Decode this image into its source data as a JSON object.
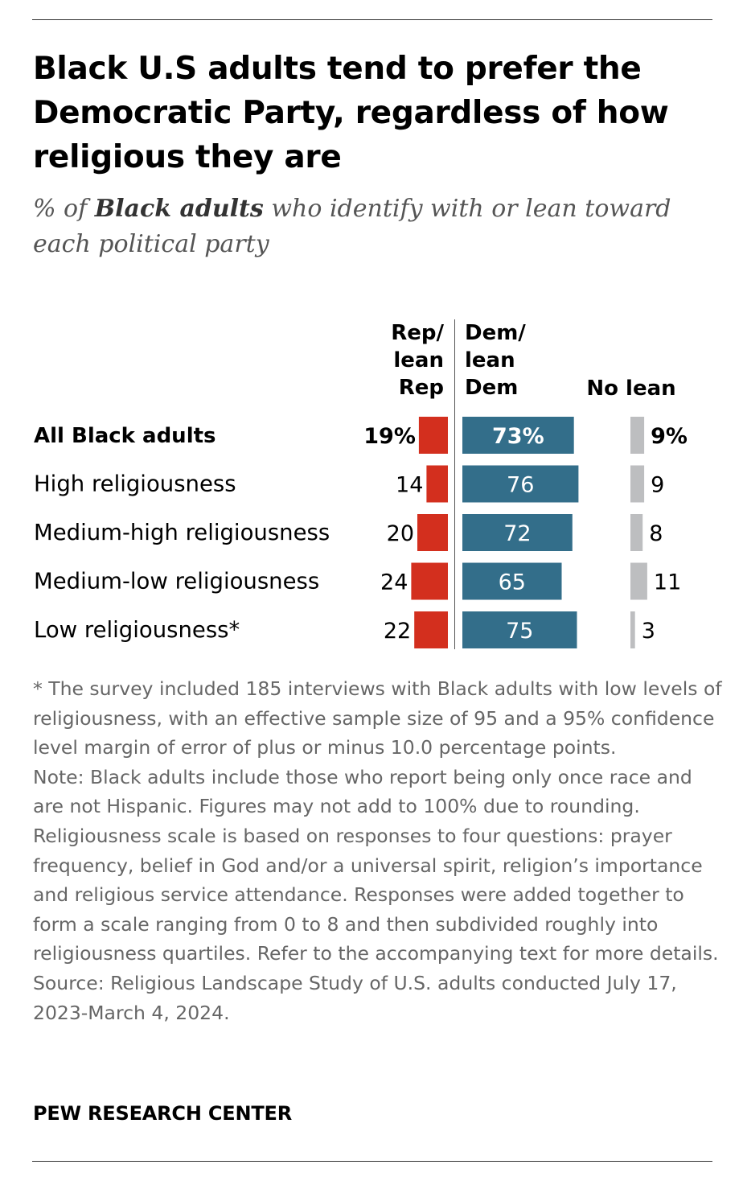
{
  "title": "Black U.S adults tend to prefer the Democratic Party, regardless of how religious they are",
  "subtitle": {
    "prefix": "% of ",
    "emphasis": "Black adults",
    "suffix": " who identify with or lean toward each political party"
  },
  "colors": {
    "rep": "#d32f1e",
    "dem": "#336e8a",
    "no_lean": "#bdbec0"
  },
  "chart_data": {
    "type": "bar",
    "categories": [
      "All Black adults",
      "High religiousness",
      "Medium-high religiousness",
      "Medium-low religiousness",
      "Low religiousness*"
    ],
    "series": [
      {
        "name": "Rep/ lean Rep",
        "values": [
          19,
          14,
          20,
          24,
          22
        ],
        "labels": [
          "19%",
          "14",
          "20",
          "24",
          "22"
        ]
      },
      {
        "name": "Dem/ lean Dem",
        "values": [
          73,
          76,
          72,
          65,
          75
        ],
        "labels": [
          "73%",
          "76",
          "72",
          "65",
          "75"
        ]
      },
      {
        "name": "No lean",
        "values": [
          9,
          9,
          8,
          11,
          3
        ],
        "labels": [
          "9%",
          "9",
          "8",
          "11",
          "3"
        ]
      }
    ],
    "title": "",
    "xlabel": "",
    "ylabel": "",
    "grid": false,
    "legend": "column headers above bars"
  },
  "footnotes": [
    "* The survey included 185 interviews with Black adults with low levels of religiousness, with an effective sample size of 95 and a 95% confidence level margin of error of plus or minus 10.0 percentage points.",
    "Note: Black adults include those who report being only once race and are not Hispanic. Figures may not add to 100% due to rounding. Religiousness scale is based on responses to four questions: prayer frequency, belief in God and/or a universal spirit, religion’s importance and religious service attendance. Responses were added together to form a scale ranging from 0 to 8 and then subdivided roughly into religiousness quartiles. Refer to the accompanying text for more details.",
    "Source: Religious Landscape Study of U.S. adults conducted July 17, 2023-March 4, 2024."
  ],
  "brand": "PEW RESEARCH CENTER"
}
